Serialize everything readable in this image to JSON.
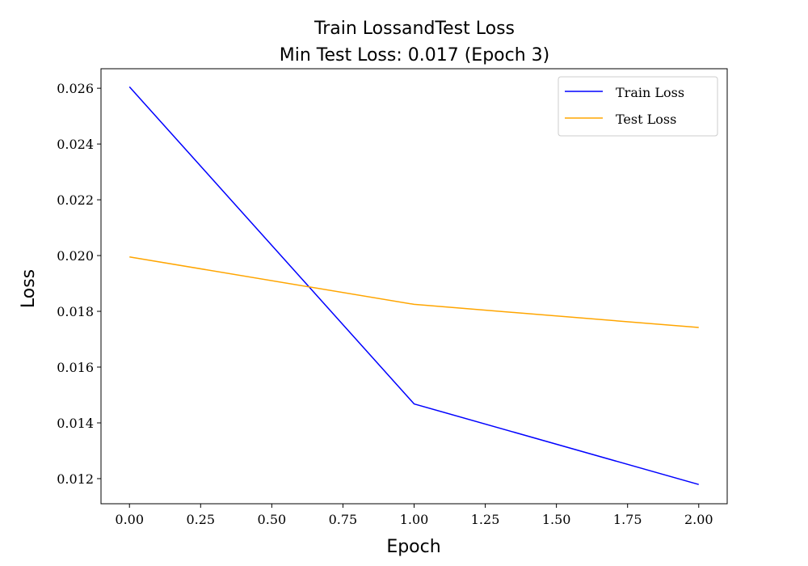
{
  "chart_data": {
    "type": "line",
    "title": "Train LossandTest Loss",
    "subtitle": "Min Test Loss: 0.017 (Epoch 3)",
    "xlabel": "Epoch",
    "ylabel": "Loss",
    "x": [
      0,
      1,
      2
    ],
    "xlim": [
      -0.1,
      2.1
    ],
    "ylim": [
      0.0111,
      0.0267
    ],
    "xticks": [
      "0.00",
      "0.25",
      "0.50",
      "0.75",
      "1.00",
      "1.25",
      "1.50",
      "1.75",
      "2.00"
    ],
    "yticks": [
      "0.012",
      "0.014",
      "0.016",
      "0.018",
      "0.020",
      "0.022",
      "0.024",
      "0.026"
    ],
    "grid": false,
    "legend_position": "top-right",
    "series": [
      {
        "name": "Train Loss",
        "color": "#0000ff",
        "values": [
          0.02605,
          0.01468,
          0.01179
        ]
      },
      {
        "name": "Test Loss",
        "color": "#ffa500",
        "values": [
          0.01995,
          0.01825,
          0.01742
        ]
      }
    ]
  }
}
